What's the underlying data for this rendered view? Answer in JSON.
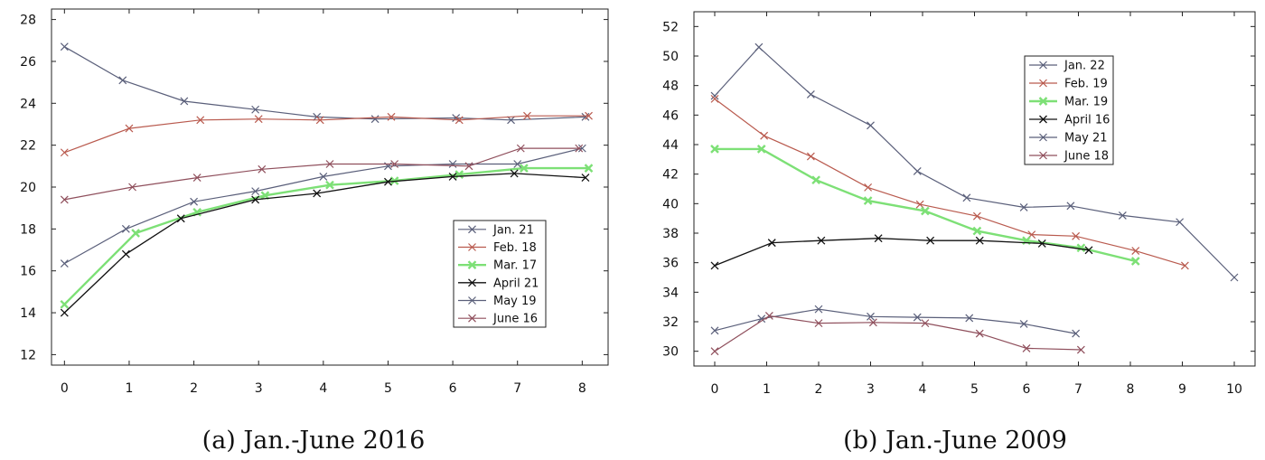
{
  "chart_data": [
    {
      "type": "line",
      "caption": "(a) Jan.-June 2016",
      "xlim": [
        -0.2,
        8.4
      ],
      "ylim": [
        11.5,
        28.5
      ],
      "xticks": [
        0,
        1,
        2,
        3,
        4,
        5,
        6,
        7,
        8
      ],
      "yticks": [
        12,
        14,
        16,
        18,
        20,
        22,
        24,
        26,
        28
      ],
      "grid": false,
      "legend_position": "bottom-right",
      "series": [
        {
          "name": "Jan. 21",
          "color": "#5a5f7a",
          "width": 1.2,
          "x": [
            0,
            0.9,
            1.85,
            2.95,
            3.9,
            4.8,
            6.05,
            6.9,
            8.05
          ],
          "y": [
            26.7,
            25.1,
            24.1,
            23.7,
            23.35,
            23.25,
            23.3,
            23.2,
            23.35
          ]
        },
        {
          "name": "Feb. 18",
          "color": "#b95a4e",
          "width": 1.2,
          "x": [
            0,
            1,
            2.1,
            3,
            3.95,
            5.05,
            6.1,
            7.15,
            8.1
          ],
          "y": [
            21.65,
            22.8,
            23.2,
            23.25,
            23.2,
            23.35,
            23.2,
            23.4,
            23.4
          ]
        },
        {
          "name": "Mar. 17",
          "color": "#7de076",
          "width": 2.4,
          "x": [
            0,
            1.1,
            2.05,
            3.1,
            4.1,
            5.1,
            6.1,
            7.1,
            8.1
          ],
          "y": [
            14.4,
            17.8,
            18.8,
            19.6,
            20.1,
            20.3,
            20.6,
            20.9,
            20.9
          ]
        },
        {
          "name": "April 21",
          "color": "#111111",
          "width": 1.3,
          "x": [
            0,
            0.95,
            1.8,
            2.95,
            3.9,
            5.0,
            6.0,
            6.95,
            8.05
          ],
          "y": [
            14.0,
            16.8,
            18.5,
            19.4,
            19.7,
            20.25,
            20.5,
            20.65,
            20.45
          ]
        },
        {
          "name": "May 19",
          "color": "#5a5f7a",
          "width": 1.2,
          "x": [
            0,
            0.95,
            2.0,
            2.95,
            4.0,
            5.0,
            6.0,
            7.0,
            8.0
          ],
          "y": [
            16.35,
            18.0,
            19.3,
            19.8,
            20.5,
            21.0,
            21.1,
            21.1,
            21.85
          ]
        },
        {
          "name": "June 16",
          "color": "#8f4f5c",
          "width": 1.2,
          "x": [
            0,
            1.05,
            2.05,
            3.05,
            4.1,
            5.1,
            6.25,
            7.05,
            7.95
          ],
          "y": [
            19.4,
            20.0,
            20.45,
            20.85,
            21.1,
            21.1,
            21.0,
            21.85,
            21.85
          ]
        }
      ]
    },
    {
      "type": "line",
      "caption": "(b) Jan.-June 2009",
      "xlim": [
        -0.4,
        10.4
      ],
      "ylim": [
        29.0,
        53.0
      ],
      "xticks": [
        0,
        1,
        2,
        3,
        4,
        5,
        6,
        7,
        8,
        9,
        10
      ],
      "yticks": [
        30,
        32,
        34,
        36,
        38,
        40,
        42,
        44,
        46,
        48,
        50,
        52
      ],
      "grid": false,
      "legend_position": "top-center",
      "series": [
        {
          "name": "Jan. 22",
          "color": "#5a5f7a",
          "width": 1.2,
          "x": [
            0,
            0.85,
            1.85,
            3.0,
            3.9,
            4.85,
            5.95,
            6.85,
            7.85,
            8.95,
            10.0
          ],
          "y": [
            47.3,
            50.6,
            47.4,
            45.3,
            42.2,
            40.4,
            39.75,
            39.85,
            39.2,
            38.75,
            35.0
          ]
        },
        {
          "name": "Feb. 19",
          "color": "#b95a4e",
          "width": 1.2,
          "x": [
            0,
            0.95,
            1.85,
            2.95,
            3.95,
            5.05,
            6.1,
            6.95,
            8.1,
            9.05
          ],
          "y": [
            47.1,
            44.6,
            43.2,
            41.1,
            39.95,
            39.15,
            37.9,
            37.8,
            36.8,
            35.8
          ]
        },
        {
          "name": "Mar. 19",
          "color": "#7de076",
          "width": 2.4,
          "x": [
            0,
            0.9,
            1.95,
            2.95,
            4.05,
            5.05,
            6.0,
            7.05,
            8.1
          ],
          "y": [
            43.7,
            43.7,
            41.6,
            40.2,
            39.5,
            38.15,
            37.5,
            37.0,
            36.1
          ]
        },
        {
          "name": "April 16",
          "color": "#111111",
          "width": 1.3,
          "x": [
            0,
            1.1,
            2.05,
            3.15,
            4.15,
            5.1,
            6.3,
            7.2
          ],
          "y": [
            35.8,
            37.35,
            37.5,
            37.65,
            37.5,
            37.5,
            37.3,
            36.85
          ]
        },
        {
          "name": "May 21",
          "color": "#5a5f7a",
          "width": 1.2,
          "x": [
            0,
            0.9,
            2.0,
            3.0,
            3.9,
            4.9,
            5.95,
            6.95
          ],
          "y": [
            31.4,
            32.2,
            32.85,
            32.35,
            32.3,
            32.25,
            31.85,
            31.2
          ]
        },
        {
          "name": "June 18",
          "color": "#8f4f5c",
          "width": 1.2,
          "x": [
            0,
            1.05,
            2.0,
            3.05,
            4.05,
            5.1,
            6.0,
            7.05
          ],
          "y": [
            30.0,
            32.4,
            31.9,
            31.95,
            31.9,
            31.2,
            30.2,
            30.1
          ]
        }
      ]
    }
  ]
}
